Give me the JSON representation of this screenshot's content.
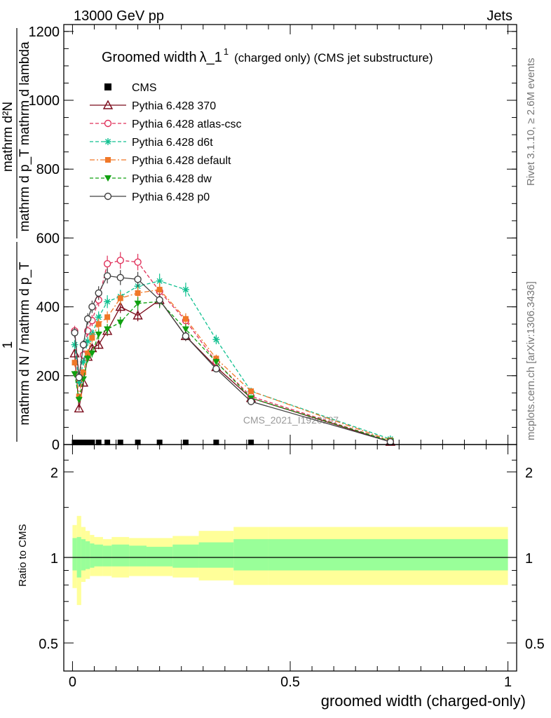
{
  "header": {
    "left": "13000 GeV pp",
    "right": "Jets"
  },
  "side_labels": {
    "rivet": "Rivet 3.1.10, ≥ 2.6M events",
    "mcplots": "mcplots.cern.ch [arXiv:1306.3436]"
  },
  "watermark": "CMS_2021_I1920187",
  "chart_data": [
    {
      "type": "line",
      "title": "Groomed width",
      "title_symbol": "λ_1",
      "title_sup": "1",
      "title_suffix": "(charged only) (CMS jet substructure)",
      "ylabel_upper": "mathrm d²N",
      "ylabel_upper_den": "mathrm d p_T mathrm d lambda",
      "ylabel_numerator": "1",
      "ylabel_lower": "mathrm d N / mathrm d p_T",
      "ylim": [
        0,
        1220
      ],
      "yticks": [
        "0",
        "200",
        "400",
        "600",
        "800",
        "1000",
        "1200"
      ],
      "xlim": [
        -0.02,
        1.02
      ],
      "legend_position": "top-left",
      "cms": {
        "name": "CMS",
        "x": [
          0.005,
          0.015,
          0.025,
          0.035,
          0.045,
          0.06,
          0.08,
          0.11,
          0.15,
          0.2,
          0.26,
          0.33,
          0.41
        ],
        "y": [
          2,
          2,
          2,
          2,
          2,
          2,
          2,
          2,
          2,
          2,
          2,
          2,
          2
        ]
      },
      "series": [
        {
          "name": "Pythia 6.428 370",
          "color": "#7a0a1a",
          "marker": "triangle-open",
          "dash": "solid",
          "x": [
            0.005,
            0.015,
            0.025,
            0.035,
            0.045,
            0.06,
            0.08,
            0.11,
            0.15,
            0.2,
            0.26,
            0.33,
            0.41,
            0.73
          ],
          "y": [
            265,
            105,
            180,
            255,
            280,
            290,
            330,
            400,
            375,
            420,
            315,
            225,
            135,
            8
          ]
        },
        {
          "name": "Pythia 6.428 atlas-csc",
          "color": "#e0305a",
          "marker": "circle-open",
          "dash": "dashed",
          "x": [
            0.005,
            0.015,
            0.025,
            0.035,
            0.045,
            0.06,
            0.08,
            0.11,
            0.15,
            0.2,
            0.26,
            0.33,
            0.41,
            0.73
          ],
          "y": [
            330,
            200,
            260,
            330,
            360,
            420,
            525,
            535,
            530,
            445,
            360,
            240,
            140,
            10
          ]
        },
        {
          "name": "Pythia 6.428 d6t",
          "color": "#10c090",
          "marker": "star",
          "dash": "dashed",
          "x": [
            0.005,
            0.015,
            0.025,
            0.035,
            0.045,
            0.06,
            0.08,
            0.11,
            0.15,
            0.2,
            0.26,
            0.33,
            0.41,
            0.73
          ],
          "y": [
            290,
            180,
            240,
            300,
            320,
            370,
            415,
            430,
            460,
            475,
            450,
            305,
            155,
            16
          ]
        },
        {
          "name": "Pythia 6.428 default",
          "color": "#f07828",
          "marker": "square",
          "dash": "dashdot",
          "x": [
            0.005,
            0.015,
            0.025,
            0.035,
            0.045,
            0.06,
            0.08,
            0.11,
            0.15,
            0.2,
            0.26,
            0.33,
            0.41,
            0.73
          ],
          "y": [
            238,
            140,
            210,
            265,
            310,
            350,
            370,
            425,
            440,
            450,
            365,
            250,
            155,
            12
          ]
        },
        {
          "name": "Pythia 6.428 dw",
          "color": "#10a010",
          "marker": "triangle-down",
          "dash": "dashed",
          "x": [
            0.005,
            0.015,
            0.025,
            0.035,
            0.045,
            0.06,
            0.08,
            0.11,
            0.15,
            0.2,
            0.26,
            0.33,
            0.41,
            0.73
          ],
          "y": [
            205,
            130,
            190,
            250,
            265,
            320,
            335,
            355,
            410,
            415,
            335,
            240,
            135,
            10
          ]
        },
        {
          "name": "Pythia 6.428 p0",
          "color": "#404040",
          "marker": "circle-open",
          "dash": "solid",
          "x": [
            0.005,
            0.015,
            0.025,
            0.035,
            0.045,
            0.06,
            0.08,
            0.11,
            0.15,
            0.2,
            0.26,
            0.33,
            0.41,
            0.73
          ],
          "y": [
            325,
            195,
            290,
            365,
            400,
            440,
            490,
            485,
            480,
            420,
            315,
            220,
            125,
            8
          ]
        }
      ]
    },
    {
      "type": "area",
      "ylabel": "Ratio to CMS",
      "xlabel": "groomed width (charged-only)",
      "ylim": [
        0.42,
        2.35
      ],
      "yticks": [
        "0.5",
        "1",
        "2"
      ],
      "ytick_values": [
        0.5,
        1,
        2
      ],
      "xticks": [
        "0",
        "0.5",
        "1"
      ],
      "xtick_values": [
        0,
        0.5,
        1
      ],
      "reference_line": 1,
      "bands": {
        "edges": [
          0,
          0.01,
          0.02,
          0.03,
          0.04,
          0.05,
          0.07,
          0.09,
          0.13,
          0.17,
          0.23,
          0.29,
          0.37,
          0.45,
          1.0
        ],
        "inner_up": [
          1.17,
          1.18,
          1.16,
          1.14,
          1.12,
          1.11,
          1.1,
          1.11,
          1.1,
          1.09,
          1.11,
          1.13,
          1.16,
          1.16
        ],
        "inner_down": [
          0.9,
          0.85,
          0.9,
          0.91,
          0.92,
          0.93,
          0.93,
          0.93,
          0.93,
          0.93,
          0.92,
          0.92,
          0.9,
          0.9
        ],
        "outer_up": [
          1.3,
          1.4,
          1.28,
          1.24,
          1.2,
          1.18,
          1.16,
          1.18,
          1.17,
          1.17,
          1.19,
          1.24,
          1.28,
          1.28
        ],
        "outer_down": [
          0.78,
          0.68,
          0.82,
          0.84,
          0.86,
          0.86,
          0.86,
          0.85,
          0.86,
          0.86,
          0.85,
          0.83,
          0.8,
          0.8
        ]
      },
      "inner_color": "#99ff99",
      "outer_color": "#ffff99"
    }
  ]
}
